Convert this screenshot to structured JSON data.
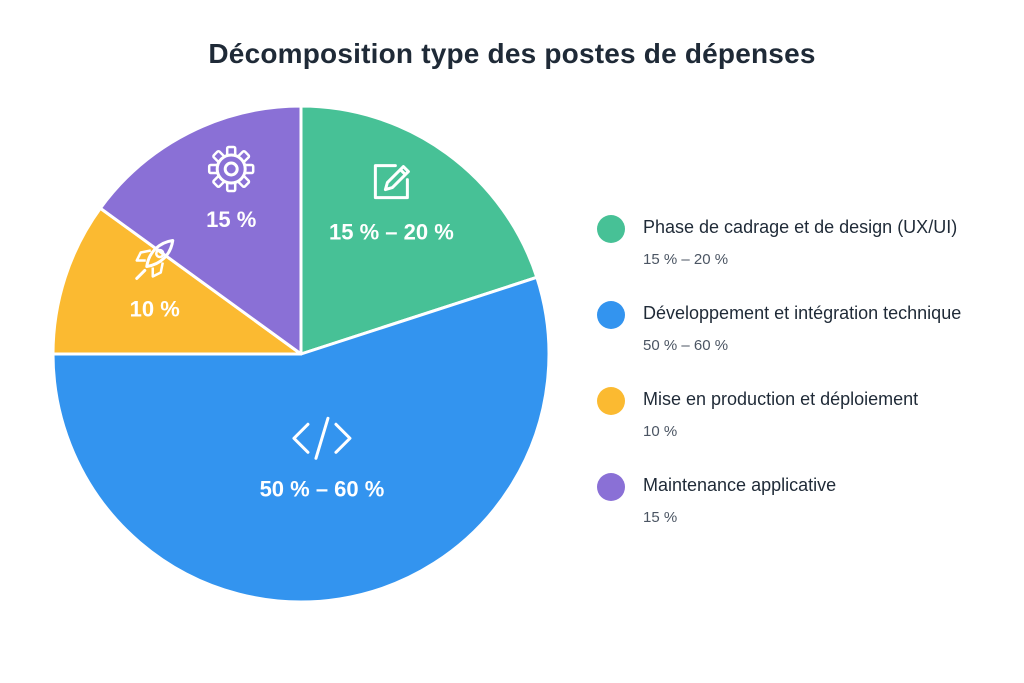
{
  "chart_data": {
    "type": "pie",
    "title": "Décomposition type des postes de dépenses",
    "slices": [
      {
        "name": "Phase de cadrage et de design (UX/UI)",
        "label": "15 % – 20 %",
        "value": 20,
        "color": "#47c196",
        "icon": "pencil-square-icon"
      },
      {
        "name": "Développement et intégration technique",
        "label": "50 % – 60 %",
        "value": 55,
        "color": "#3394ef",
        "icon": "code-icon"
      },
      {
        "name": "Mise en production et déploiement",
        "label": "10 %",
        "value": 10,
        "color": "#fbba31",
        "icon": "rocket-icon"
      },
      {
        "name": "Maintenance applicative",
        "label": "15 %",
        "value": 15,
        "color": "#8a70d6",
        "icon": "gear-icon"
      }
    ],
    "legend": "right"
  }
}
